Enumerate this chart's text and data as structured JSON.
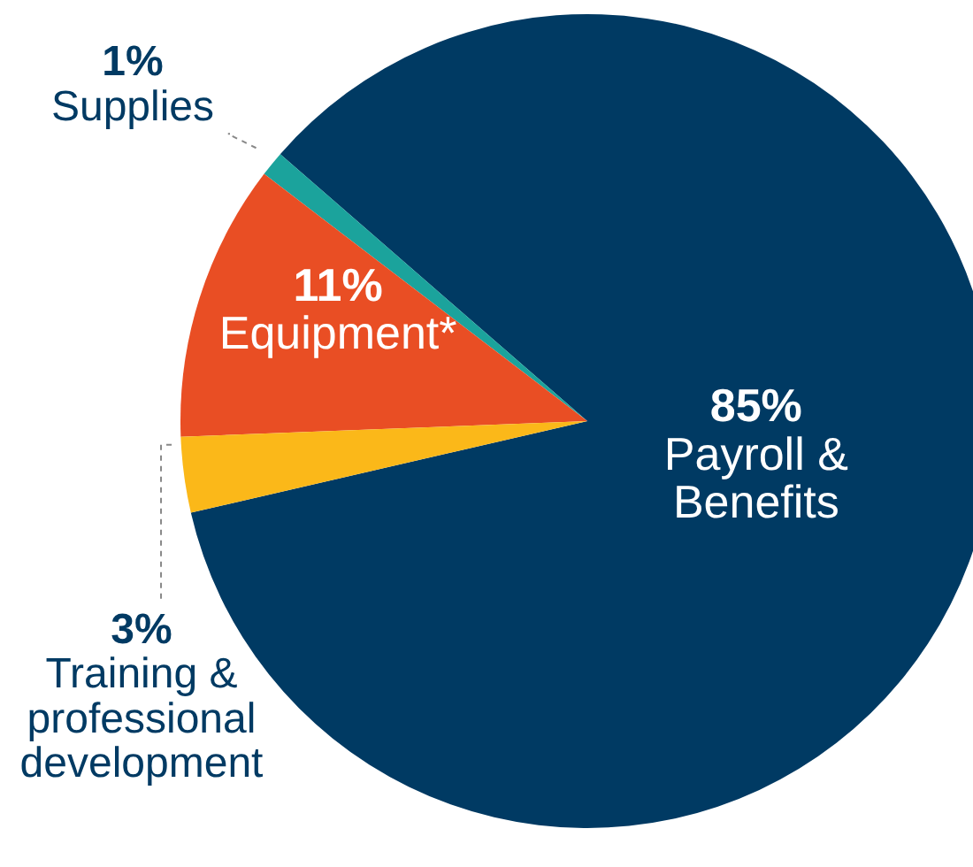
{
  "chart_data": {
    "type": "pie",
    "categories": [
      "Payroll & Benefits",
      "Supplies",
      "Equipment*",
      "Training & professional development"
    ],
    "values": [
      85,
      1,
      11,
      3
    ],
    "value_labels": [
      "85%",
      "1%",
      "11%",
      "3%"
    ],
    "colors": [
      "#003a63",
      "#1ba39c",
      "#e94e24",
      "#fbb819"
    ]
  }
}
